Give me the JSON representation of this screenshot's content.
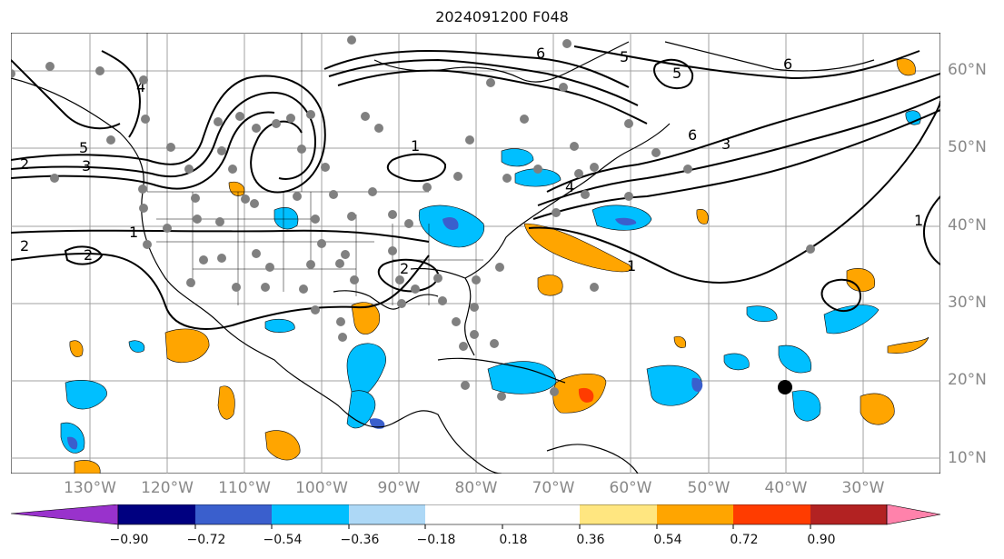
{
  "title": "2024091200 F048",
  "lat_labels": [
    "60°N",
    "50°N",
    "40°N",
    "30°N",
    "20°N",
    "10°N"
  ],
  "lon_labels": [
    "130°W",
    "120°W",
    "110°W",
    "100°W",
    "90°W",
    "80°W",
    "70°W",
    "60°W",
    "50°W",
    "40°W",
    "30°W"
  ],
  "contour_labels": [
    "1",
    "2",
    "3",
    "4",
    "5",
    "6"
  ],
  "colorbar": {
    "ticks": [
      "−0.90",
      "−0.72",
      "−0.54",
      "−0.36",
      "−0.18",
      "0.18",
      "0.36",
      "0.54",
      "0.72",
      "0.90"
    ],
    "colors": [
      "#9932cc",
      "#000080",
      "#3a5fcd",
      "#00bfff",
      "#add8f6",
      "#ffffff",
      "#ffe680",
      "#ffa500",
      "#ff3c00",
      "#b22222",
      "#ff82ab"
    ]
  },
  "marker": {
    "lon": -40,
    "lat": 19
  }
}
